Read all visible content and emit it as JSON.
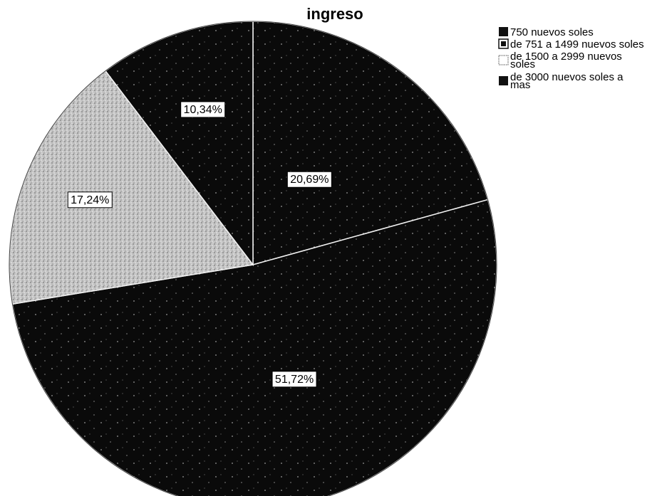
{
  "chart_data": {
    "type": "pie",
    "title": "ingreso",
    "legend_position": "top-right",
    "slices": [
      {
        "name": "750 nuevos soles",
        "value": 20.69,
        "label": "20,69%",
        "color": "#0a0a0a",
        "pattern": "dark-speckle"
      },
      {
        "name": "de 751 a 1499 nuevos soles",
        "value": 51.72,
        "label": "51,72%",
        "color": "#0c0c0c",
        "pattern": "dark-speckle"
      },
      {
        "name": "de 1500 a 2999 nuevos soles",
        "value": 17.24,
        "label": "17,24%",
        "color": "#b8b8b8",
        "pattern": "light-speckle"
      },
      {
        "name": "de 3000 nuevos soles a mas",
        "value": 10.34,
        "label": "10,34%",
        "color": "#0a0a0a",
        "pattern": "dark-speckle"
      }
    ],
    "legend": [
      {
        "lines": [
          "750 nuevos soles"
        ],
        "swatch": "solid-dark"
      },
      {
        "lines": [
          "de 751 a 1499 nuevos soles"
        ],
        "swatch": "boxed-dark"
      },
      {
        "lines": [
          "de 1500 a 2999 nuevos",
          "soles"
        ],
        "swatch": "light"
      },
      {
        "lines": [
          "de 3000 nuevos soles a",
          "mas"
        ],
        "swatch": "solid-dark"
      }
    ]
  }
}
